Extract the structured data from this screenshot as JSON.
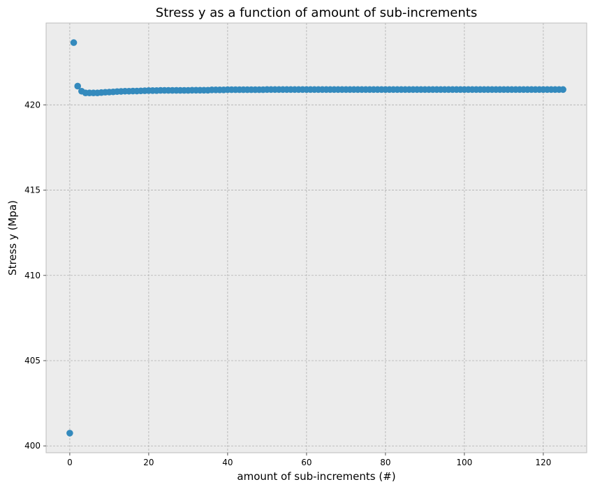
{
  "chart_data": {
    "type": "scatter",
    "title": "Stress y as a function of amount of sub-increments",
    "xlabel": "amount of sub-increments (#)",
    "ylabel": "Stress y (Mpa)",
    "xlim": [
      -6,
      131
    ],
    "ylim": [
      399.6,
      424.8
    ],
    "xticks": [
      0,
      20,
      40,
      60,
      80,
      100,
      120
    ],
    "yticks": [
      400,
      405,
      410,
      415,
      420
    ],
    "grid": true,
    "marker_color": "#348abd",
    "plot_background": "#ececec",
    "series": [
      {
        "x": [
          0,
          1,
          2,
          3,
          4,
          5,
          6,
          7,
          8,
          9,
          10,
          11,
          12,
          13,
          14,
          15,
          16,
          17,
          18,
          19,
          20,
          21,
          22,
          23,
          24,
          25,
          26,
          27,
          28,
          29,
          30,
          31,
          32,
          33,
          34,
          35,
          36,
          37,
          38,
          39,
          40,
          41,
          42,
          43,
          44,
          45,
          46,
          47,
          48,
          49,
          50,
          51,
          52,
          53,
          54,
          55,
          56,
          57,
          58,
          59,
          60,
          61,
          62,
          63,
          64,
          65,
          66,
          67,
          68,
          69,
          70,
          71,
          72,
          73,
          74,
          75,
          76,
          77,
          78,
          79,
          80,
          81,
          82,
          83,
          84,
          85,
          86,
          87,
          88,
          89,
          90,
          91,
          92,
          93,
          94,
          95,
          96,
          97,
          98,
          99,
          100,
          101,
          102,
          103,
          104,
          105,
          106,
          107,
          108,
          109,
          110,
          111,
          112,
          113,
          114,
          115,
          116,
          117,
          118,
          119,
          120,
          121,
          122,
          123,
          124,
          125
        ],
        "y": [
          400.75,
          423.65,
          421.1,
          420.8,
          420.7,
          420.7,
          420.7,
          420.7,
          420.72,
          420.74,
          420.75,
          420.76,
          420.78,
          420.79,
          420.8,
          420.8,
          420.81,
          420.81,
          420.82,
          420.83,
          420.84,
          420.84,
          420.84,
          420.85,
          420.85,
          420.85,
          420.85,
          420.85,
          420.85,
          420.85,
          420.85,
          420.86,
          420.86,
          420.86,
          420.86,
          420.86,
          420.88,
          420.88,
          420.88,
          420.88,
          420.89,
          420.89,
          420.89,
          420.89,
          420.89,
          420.89,
          420.89,
          420.89,
          420.89,
          420.89,
          420.9,
          420.9,
          420.9,
          420.9,
          420.9,
          420.9,
          420.9,
          420.9,
          420.9,
          420.9,
          420.9,
          420.9,
          420.9,
          420.9,
          420.9,
          420.9,
          420.9,
          420.9,
          420.9,
          420.9,
          420.9,
          420.9,
          420.9,
          420.9,
          420.9,
          420.9,
          420.9,
          420.9,
          420.9,
          420.9,
          420.9,
          420.9,
          420.9,
          420.9,
          420.9,
          420.9,
          420.9,
          420.9,
          420.9,
          420.9,
          420.9,
          420.9,
          420.9,
          420.9,
          420.9,
          420.9,
          420.9,
          420.9,
          420.9,
          420.9,
          420.9,
          420.9,
          420.9,
          420.9,
          420.9,
          420.9,
          420.9,
          420.9,
          420.9,
          420.9,
          420.9,
          420.9,
          420.9,
          420.9,
          420.9,
          420.9,
          420.9,
          420.9,
          420.9,
          420.9,
          420.9,
          420.9,
          420.9,
          420.9,
          420.9,
          420.9
        ]
      }
    ]
  }
}
